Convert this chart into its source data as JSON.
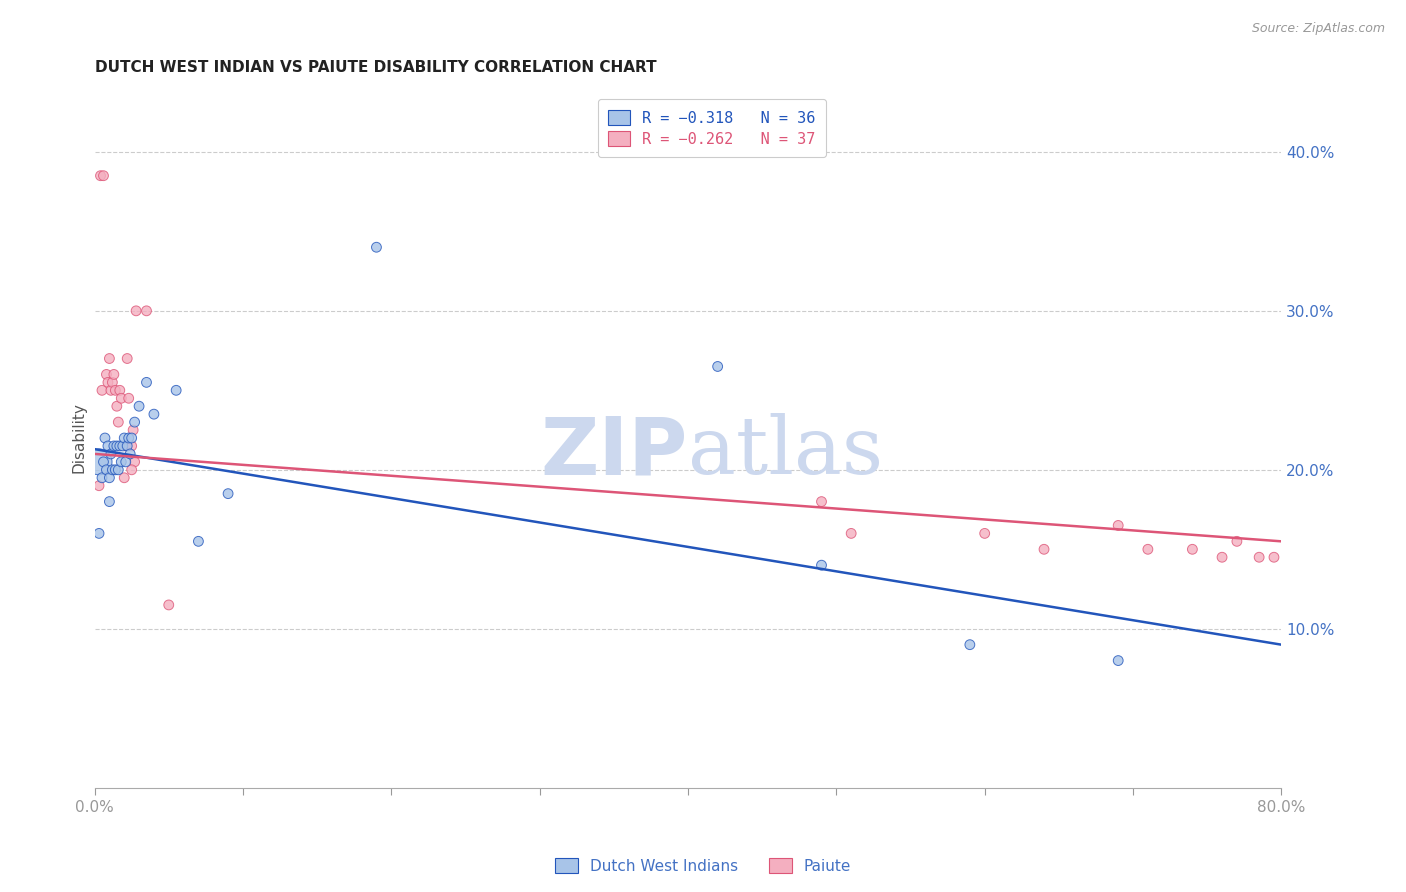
{
  "title": "DUTCH WEST INDIAN VS PAIUTE DISABILITY CORRELATION CHART",
  "source": "Source: ZipAtlas.com",
  "ylabel": "Disability",
  "xlim": [
    0.0,
    0.8
  ],
  "ylim": [
    0.0,
    0.44
  ],
  "yticks": [
    0.1,
    0.2,
    0.3,
    0.4
  ],
  "ytick_labels": [
    "10.0%",
    "20.0%",
    "30.0%",
    "40.0%"
  ],
  "xticks": [
    0.0,
    0.1,
    0.2,
    0.3,
    0.4,
    0.5,
    0.6,
    0.7,
    0.8
  ],
  "xtick_labels": [
    "0.0%",
    "",
    "",
    "",
    "",
    "",
    "",
    "",
    "80.0%"
  ],
  "legend_blue_R": "R = −0.318",
  "legend_blue_N": "N = 36",
  "legend_pink_R": "R = −0.262",
  "legend_pink_N": "N = 37",
  "blue_color": "#a8c4e8",
  "pink_color": "#f4afc0",
  "line_blue": "#2255bb",
  "line_pink": "#dd5577",
  "axis_color": "#4472c4",
  "watermark_color": "#ccd8ee",
  "blue_scatter_x": [
    0.003,
    0.003,
    0.005,
    0.006,
    0.007,
    0.008,
    0.009,
    0.01,
    0.01,
    0.011,
    0.012,
    0.013,
    0.014,
    0.015,
    0.016,
    0.017,
    0.018,
    0.019,
    0.02,
    0.021,
    0.022,
    0.023,
    0.024,
    0.025,
    0.027,
    0.03,
    0.035,
    0.04,
    0.055,
    0.07,
    0.09,
    0.19,
    0.42,
    0.49,
    0.59,
    0.69
  ],
  "blue_scatter_y": [
    0.205,
    0.16,
    0.195,
    0.205,
    0.22,
    0.2,
    0.215,
    0.195,
    0.18,
    0.21,
    0.2,
    0.215,
    0.2,
    0.215,
    0.2,
    0.215,
    0.205,
    0.215,
    0.22,
    0.205,
    0.215,
    0.22,
    0.21,
    0.22,
    0.23,
    0.24,
    0.255,
    0.235,
    0.25,
    0.155,
    0.185,
    0.34,
    0.265,
    0.14,
    0.09,
    0.08
  ],
  "blue_scatter_size": [
    350,
    50,
    50,
    50,
    50,
    50,
    50,
    50,
    50,
    50,
    50,
    50,
    50,
    50,
    50,
    50,
    50,
    50,
    50,
    50,
    50,
    50,
    50,
    50,
    50,
    50,
    50,
    50,
    50,
    50,
    50,
    50,
    50,
    50,
    50,
    50
  ],
  "pink_scatter_x": [
    0.003,
    0.004,
    0.005,
    0.006,
    0.008,
    0.009,
    0.01,
    0.011,
    0.012,
    0.013,
    0.014,
    0.015,
    0.016,
    0.017,
    0.018,
    0.02,
    0.021,
    0.022,
    0.023,
    0.025,
    0.026,
    0.027,
    0.028,
    0.035,
    0.05,
    0.025,
    0.49,
    0.51,
    0.6,
    0.64,
    0.69,
    0.71,
    0.74,
    0.76,
    0.77,
    0.785,
    0.795
  ],
  "pink_scatter_y": [
    0.19,
    0.385,
    0.25,
    0.385,
    0.26,
    0.255,
    0.27,
    0.25,
    0.255,
    0.26,
    0.25,
    0.24,
    0.23,
    0.25,
    0.245,
    0.195,
    0.215,
    0.27,
    0.245,
    0.215,
    0.225,
    0.205,
    0.3,
    0.3,
    0.115,
    0.2,
    0.18,
    0.16,
    0.16,
    0.15,
    0.165,
    0.15,
    0.15,
    0.145,
    0.155,
    0.145,
    0.145
  ],
  "pink_scatter_size": [
    50,
    50,
    50,
    50,
    50,
    50,
    50,
    50,
    50,
    50,
    50,
    50,
    50,
    50,
    50,
    50,
    50,
    50,
    50,
    50,
    50,
    50,
    50,
    50,
    50,
    50,
    50,
    50,
    50,
    50,
    50,
    50,
    50,
    50,
    50,
    50,
    50
  ],
  "blue_line_x": [
    0.0,
    0.8
  ],
  "blue_line_y": [
    0.213,
    0.09
  ],
  "pink_line_x": [
    0.0,
    0.8
  ],
  "pink_line_y": [
    0.21,
    0.155
  ],
  "figsize": [
    14.06,
    8.92
  ],
  "dpi": 100
}
